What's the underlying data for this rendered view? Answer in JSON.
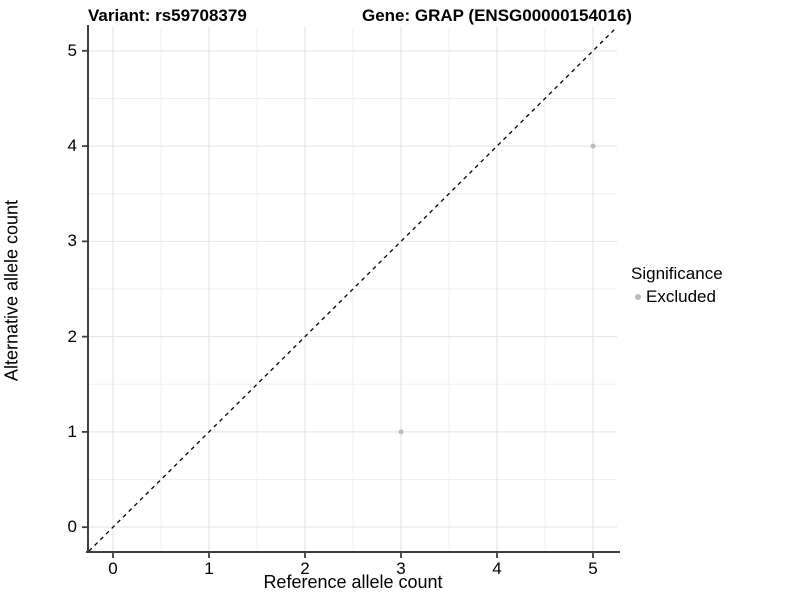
{
  "chart_data": {
    "type": "scatter",
    "title_left": "Variant: rs59708379",
    "title_right": "Gene: GRAP (ENSG00000154016)",
    "xlabel": "Reference allele count",
    "ylabel": "Alternative allele count",
    "xlim": [
      -0.25,
      5.25
    ],
    "ylim": [
      -0.25,
      5.25
    ],
    "x_ticks": [
      0,
      1,
      2,
      3,
      4,
      5
    ],
    "y_ticks": [
      0,
      1,
      2,
      3,
      4,
      5
    ],
    "x_minor_ticks": [
      0.5,
      1.5,
      2.5,
      3.5,
      4.5
    ],
    "y_minor_ticks": [
      0.5,
      1.5,
      2.5,
      3.5,
      4.5
    ],
    "grid": true,
    "series": [
      {
        "name": "Excluded",
        "color": "#bcbcbc",
        "points": [
          {
            "x": 3,
            "y": 1
          },
          {
            "x": 5,
            "y": 4
          }
        ]
      }
    ],
    "reference_line": {
      "style": "dashed",
      "from": [
        -0.25,
        -0.25
      ],
      "to": [
        5.25,
        5.25
      ],
      "color": "#000000",
      "meaning": "identity line y = x"
    },
    "legend": {
      "title": "Significance",
      "position": "right",
      "items": [
        {
          "label": "Excluded",
          "color": "#bcbcbc"
        }
      ]
    },
    "colors": {
      "background": "#ffffff",
      "axis_line": "#404040",
      "grid_major": "#e3e3e3",
      "grid_minor": "#efefef",
      "tick_text": "#000000"
    }
  }
}
